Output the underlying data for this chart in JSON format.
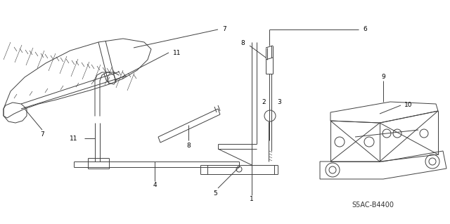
{
  "bg_color": "#ffffff",
  "line_color": "#404040",
  "label_color": "#000000",
  "fig_width": 6.4,
  "fig_height": 3.19,
  "dpi": 100,
  "part_code": "S5AC-B4400"
}
